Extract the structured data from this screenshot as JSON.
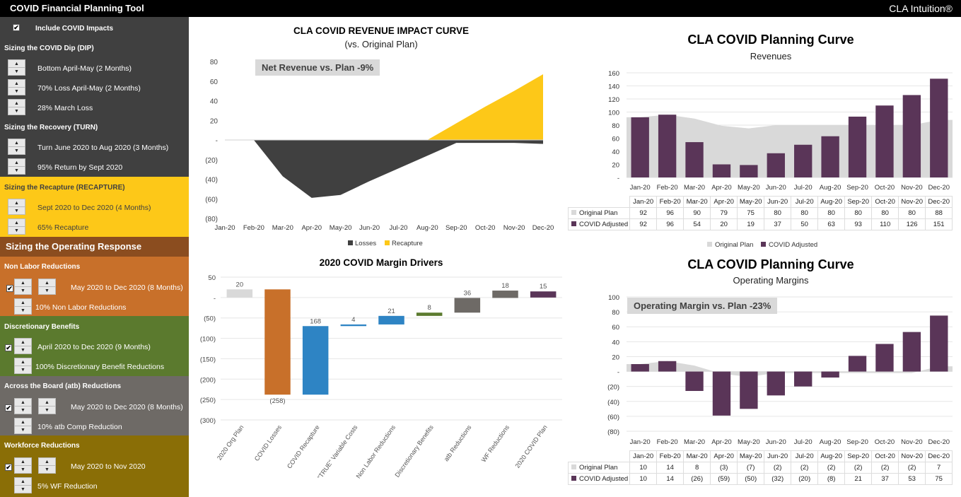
{
  "header": {
    "title": "COVID Financial Planning Tool",
    "brand": "CLA Intuition®"
  },
  "sidebar": {
    "include_covid": {
      "label": "Include COVID Impacts",
      "checked": true
    },
    "dip": {
      "title": "Sizing the COVID Dip (DIP)",
      "items": [
        "Bottom April-May (2 Months)",
        "70% Loss April-May (2 Months)",
        "28% March Loss"
      ]
    },
    "turn": {
      "title": "Sizing the Recovery (TURN)",
      "items": [
        "Turn June 2020 to Aug 2020 (3 Months)",
        "95% Return by Sept 2020"
      ]
    },
    "recapture": {
      "title": "Sizing the Recapture (RECAPTURE)",
      "items": [
        "Sept 2020 to Dec 2020 (4 Months)",
        "65% Recapture"
      ]
    },
    "operating_title": "Sizing the Operating Response",
    "non_labor": {
      "title": "Non Labor Reductions",
      "period": "May 2020 to Dec 2020 (8 Months)",
      "amount": "10% Non Labor Reductions",
      "checked": true
    },
    "discretionary": {
      "title": "Discretionary Benefits",
      "period": "April 2020 to Dec 2020 (9 Months)",
      "amount": "100% Discretionary Benefit Reductions",
      "checked": true
    },
    "atb": {
      "title": "Across the Board (atb) Reductions",
      "period": "May 2020 to Dec 2020 (8 Months)",
      "amount": "10% atb Comp Reduction",
      "checked": true
    },
    "workforce": {
      "title": "Workforce Reductions",
      "period": "May 2020 to Nov 2020",
      "amount": "5% WF Reduction",
      "checked": true
    },
    "colors": {
      "dark": "#404040",
      "yellow": "#fdc818",
      "brown": "#8b4d1f",
      "orange": "#c8702a",
      "green": "#5b7a2e",
      "gray": "#6e6a66",
      "olive": "#8a6e06"
    }
  },
  "chart_data": [
    {
      "id": "impact",
      "type": "area",
      "title": "CLA COVID REVENUE IMPACT CURVE",
      "subtitle": "(vs. Original Plan)",
      "callout": "Net Revenue vs. Plan -9%",
      "categories": [
        "Jan-20",
        "Feb-20",
        "Mar-20",
        "Apr-20",
        "May-20",
        "Jun-20",
        "Jul-20",
        "Aug-20",
        "Sep-20",
        "Oct-20",
        "Nov-20",
        "Dec-20"
      ],
      "series": [
        {
          "name": "Losses",
          "color": "#404040",
          "values": [
            0,
            0,
            -37,
            -59,
            -56,
            -42,
            -29,
            -16,
            -3,
            -3,
            -3,
            -4
          ]
        },
        {
          "name": "Recapture",
          "color": "#fdc818",
          "values": [
            0,
            0,
            0,
            0,
            0,
            0,
            0,
            0,
            17,
            34,
            50,
            67
          ]
        }
      ],
      "yticks": [
        "80",
        "60",
        "40",
        "20",
        "-",
        "(20)",
        "(40)",
        "(60)",
        "(80)"
      ],
      "ylim": [
        -80,
        80
      ],
      "legend": "bottom"
    },
    {
      "id": "revenues",
      "type": "bar",
      "title": "CLA COVID Planning Curve",
      "subtitle": "Revenues",
      "categories": [
        "Jan-20",
        "Feb-20",
        "Mar-20",
        "Apr-20",
        "May-20",
        "Jun-20",
        "Jul-20",
        "Aug-20",
        "Sep-20",
        "Oct-20",
        "Nov-20",
        "Dec-20"
      ],
      "series": [
        {
          "name": "Original Plan",
          "type": "area",
          "color": "#d9d9d9",
          "values": [
            92,
            96,
            90,
            79,
            75,
            80,
            80,
            80,
            80,
            80,
            80,
            88
          ],
          "display": [
            "92",
            "96",
            "90",
            "79",
            "75",
            "80",
            "80",
            "80",
            "80",
            "80",
            "80",
            "88"
          ]
        },
        {
          "name": "COVID Adjusted",
          "type": "bar",
          "color": "#5a3558",
          "values": [
            92,
            96,
            54,
            20,
            19,
            37,
            50,
            63,
            93,
            110,
            126,
            151
          ],
          "display": [
            "92",
            "96",
            "54",
            "20",
            "19",
            "37",
            "50",
            "63",
            "93",
            "110",
            "126",
            "151"
          ]
        }
      ],
      "yticks": [
        "160",
        "140",
        "120",
        "100",
        "80",
        "60",
        "40",
        "20",
        "-"
      ],
      "ylim": [
        0,
        160
      ],
      "legend": "bottom"
    },
    {
      "id": "waterfall",
      "type": "bar",
      "title": "2020 COVID Margin Drivers",
      "categories": [
        "2020 Org Plan",
        "COVID Losses",
        "COVID Recapture",
        "\"TRUE\" Variable Costs",
        "Non Labor Reductions",
        "Discretionary Benefits",
        "atb Reductions",
        "WF Reductions",
        "2020 COVID Plan"
      ],
      "values": [
        20,
        -258,
        168,
        4,
        21,
        8,
        36,
        18,
        15
      ],
      "labels": [
        "20",
        "(258)",
        "168",
        "4",
        "21",
        "8",
        "36",
        "18",
        "15"
      ],
      "colors": [
        "#d9d9d9",
        "#c8702a",
        "#2e84c4",
        "#2e84c4",
        "#2e84c4",
        "#5b7a2e",
        "#6e6a66",
        "#6e6a66",
        "#5a3558"
      ],
      "yticks": [
        "50",
        "-",
        "(50)",
        "(100)",
        "(150)",
        "(200)",
        "(250)",
        "(300)"
      ],
      "ylim": [
        -300,
        50
      ]
    },
    {
      "id": "margins",
      "type": "bar",
      "title": "CLA COVID Planning Curve",
      "subtitle": "Operating Margins",
      "callout": "Operating Margin vs. Plan -23%",
      "categories": [
        "Jan-20",
        "Feb-20",
        "Mar-20",
        "Apr-20",
        "May-20",
        "Jun-20",
        "Jul-20",
        "Aug-20",
        "Sep-20",
        "Oct-20",
        "Nov-20",
        "Dec-20"
      ],
      "series": [
        {
          "name": "Original Plan",
          "type": "area",
          "color": "#d9d9d9",
          "values": [
            10,
            14,
            8,
            -3,
            -7,
            -2,
            -2,
            -2,
            -2,
            -2,
            -2,
            7
          ],
          "display": [
            "10",
            "14",
            "8",
            "(3)",
            "(7)",
            "(2)",
            "(2)",
            "(2)",
            "(2)",
            "(2)",
            "(2)",
            "7"
          ]
        },
        {
          "name": "COVID Adjusted",
          "type": "bar",
          "color": "#5a3558",
          "values": [
            10,
            14,
            -26,
            -59,
            -50,
            -32,
            -20,
            -8,
            21,
            37,
            53,
            75
          ],
          "display": [
            "10",
            "14",
            "(26)",
            "(59)",
            "(50)",
            "(32)",
            "(20)",
            "(8)",
            "21",
            "37",
            "53",
            "75"
          ]
        }
      ],
      "yticks": [
        "100",
        "80",
        "60",
        "40",
        "20",
        "-",
        "(20)",
        "(40)",
        "(60)",
        "(80)"
      ],
      "ylim": [
        -80,
        100
      ]
    }
  ]
}
